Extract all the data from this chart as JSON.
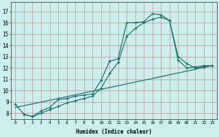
{
  "xlabel": "Humidex (Indice chaleur)",
  "xlim": [
    -0.5,
    23.5
  ],
  "ylim": [
    7.5,
    17.8
  ],
  "xticks": [
    0,
    1,
    2,
    3,
    4,
    5,
    6,
    7,
    8,
    9,
    10,
    11,
    12,
    13,
    14,
    15,
    16,
    17,
    18,
    19,
    20,
    21,
    22,
    23
  ],
  "yticks": [
    8,
    9,
    10,
    11,
    12,
    13,
    14,
    15,
    16,
    17
  ],
  "bg_color": "#cceeed",
  "grid_color": "#cc9999",
  "line_color": "#1a7070",
  "line1_x": [
    0,
    1,
    2,
    3,
    4,
    5,
    6,
    7,
    8,
    9,
    10,
    11,
    12,
    13,
    14,
    15,
    16,
    17,
    18,
    19,
    20,
    21,
    22,
    23
  ],
  "line1_y": [
    8.8,
    7.9,
    7.7,
    8.2,
    8.5,
    9.2,
    9.3,
    9.5,
    9.6,
    9.7,
    10.9,
    12.6,
    12.8,
    16.0,
    16.0,
    16.1,
    16.8,
    16.7,
    16.2,
    12.7,
    12.0,
    12.1,
    12.2,
    12.2
  ],
  "line2_x": [
    1,
    2,
    3,
    4,
    5,
    6,
    7,
    8,
    9,
    10,
    11,
    12,
    13,
    14,
    15,
    16,
    17,
    18,
    19,
    20,
    21,
    22,
    23
  ],
  "line2_y": [
    7.9,
    7.7,
    8.0,
    8.3,
    8.6,
    8.9,
    9.1,
    9.3,
    9.5,
    10.2,
    11.5,
    12.5,
    14.8,
    15.5,
    16.0,
    16.3,
    16.5,
    16.2,
    13.0,
    12.4,
    12.0,
    12.1,
    12.2
  ],
  "line3_x": [
    0,
    23
  ],
  "line3_y": [
    8.5,
    12.2
  ]
}
